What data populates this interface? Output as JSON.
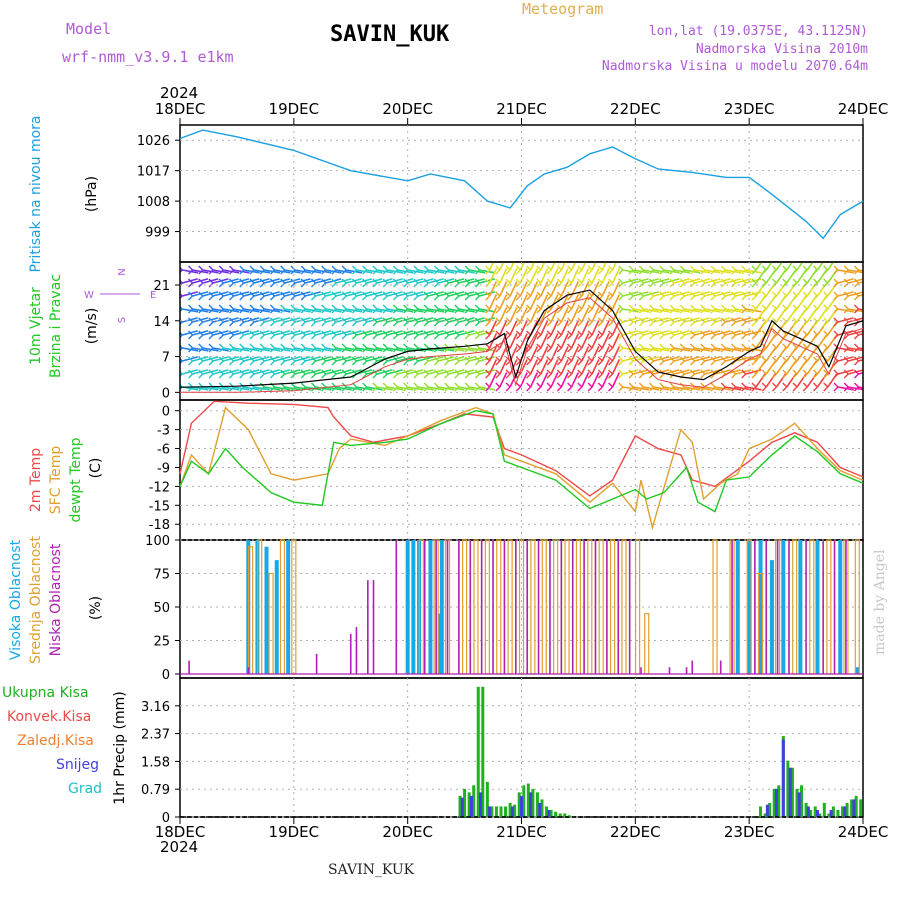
{
  "header": {
    "model_label": "Model",
    "model_name": "wrf-nmm_v3.9.1 e1km",
    "station": "SAVIN_KUK",
    "meteogram_label": "Meteogram",
    "info_lonlat": "lon,lat (19.0375E, 43.1125N)",
    "info_elev": "Nadmorska Visina 2010m",
    "info_elev_model": "Nadmorska Visina u modelu 2070.64m"
  },
  "footer": "SAVIN_KUK",
  "watermark": "made by Angel",
  "colors": {
    "pressure": "#1aa0e0",
    "temp2m": "#f04848",
    "sfc": "#e0a030",
    "dewpt": "#20c820",
    "high_cloud": "#18a8e8",
    "mid_cloud": "#e0a030",
    "low_cloud": "#b020b0",
    "total_precip": "#20b020",
    "conv_precip": "#f04848",
    "frz_precip": "#f08030",
    "snow": "#4040e0",
    "graupel": "#20c0c0",
    "grid": "#b0b0b0"
  },
  "chart_data": [
    {
      "type": "line",
      "panel": "pressure",
      "year": "2024",
      "x_ticks": [
        "18DEC",
        "19DEC",
        "20DEC",
        "21DEC",
        "22DEC",
        "23DEC",
        "24DEC"
      ],
      "ylabel": [
        "Pritisak na nivou mora",
        "(hPa)"
      ],
      "yticks": [
        999,
        1008,
        1017,
        1026
      ],
      "ylim": [
        990,
        1030.5
      ],
      "x": [
        0,
        0.2,
        0.5,
        1,
        1.5,
        2,
        2.2,
        2.5,
        2.7,
        2.9,
        3.05,
        3.2,
        3.4,
        3.6,
        3.8,
        4,
        4.2,
        4.5,
        4.8,
        5,
        5.2,
        5.5,
        5.65,
        5.8,
        6
      ],
      "y": [
        1026.5,
        1029,
        1027,
        1023,
        1017,
        1014,
        1016,
        1014,
        1008,
        1006,
        1012.5,
        1016,
        1018,
        1022,
        1024,
        1020.5,
        1017.5,
        1016.5,
        1015,
        1015,
        1010,
        1002,
        997,
        1004,
        1008
      ],
      "grid": true
    },
    {
      "type": "line",
      "panel": "wind",
      "ylabel": [
        "10m Vjetar",
        "Brzina i Pravac",
        "(m/s)"
      ],
      "compass": {
        "n": "N",
        "s": "S",
        "e": "E",
        "w": "W"
      },
      "yticks": [
        0,
        7,
        14,
        21
      ],
      "ylim": [
        -1.5,
        25.5
      ],
      "x": [
        0,
        0.5,
        1,
        1.5,
        1.8,
        2,
        2.2,
        2.5,
        2.7,
        2.85,
        2.95,
        3.05,
        3.2,
        3.4,
        3.6,
        3.8,
        4,
        4.2,
        4.4,
        4.6,
        4.8,
        5,
        5.1,
        5.2,
        5.3,
        5.4,
        5.5,
        5.6,
        5.7,
        5.85,
        6
      ],
      "y": [
        1,
        1.2,
        1.8,
        3,
        6.5,
        8,
        8.5,
        9,
        9.5,
        11.5,
        3,
        10,
        16,
        19,
        20,
        16,
        8,
        4,
        3,
        2.5,
        5,
        8,
        9,
        14,
        12,
        11,
        10,
        9,
        5,
        13,
        14
      ],
      "grid": true
    },
    {
      "type": "line",
      "panel": "temperature",
      "ylabel": [
        "2m Temp",
        "SFC Temp",
        "dewpt Temp",
        "(C)"
      ],
      "yticks": [
        0,
        -3,
        -6,
        -9,
        -12,
        -15,
        -18
      ],
      "ylim": [
        -20.5,
        1.7
      ],
      "series": [
        {
          "name": "2m Temp",
          "x": [
            0,
            0.1,
            0.3,
            0.6,
            1,
            1.3,
            1.35,
            1.5,
            1.7,
            2,
            2.3,
            2.5,
            2.75,
            2.85,
            3,
            3.3,
            3.6,
            3.8,
            4,
            4.2,
            4.4,
            4.5,
            4.7,
            5,
            5.2,
            5.4,
            5.6,
            5.8,
            6
          ],
          "y": [
            -10,
            -2,
            1.5,
            1.2,
            1,
            0.5,
            -1,
            -4,
            -5,
            -4,
            -2,
            -0.5,
            -1,
            -6,
            -7,
            -9.5,
            -13.5,
            -11,
            -4,
            -6,
            -7,
            -11,
            -12,
            -8,
            -5,
            -3.5,
            -5,
            -9,
            -10.5
          ]
        },
        {
          "name": "SFC Temp",
          "x": [
            0,
            0.1,
            0.25,
            0.4,
            0.6,
            0.8,
            1,
            1.3,
            1.4,
            1.5,
            1.8,
            2,
            2.3,
            2.6,
            2.75,
            2.85,
            3,
            3.3,
            3.6,
            3.8,
            4,
            4.05,
            4.15,
            4.4,
            4.5,
            4.6,
            4.75,
            4.9,
            5,
            5.2,
            5.4,
            5.6,
            5.8,
            6
          ],
          "y": [
            -12,
            -7,
            -10,
            0.5,
            -3,
            -10,
            -11,
            -10,
            -6,
            -4.5,
            -5.5,
            -4,
            -1.5,
            0.5,
            -0.5,
            -7,
            -8,
            -10,
            -14.5,
            -11.5,
            -16,
            -11,
            -18.5,
            -3,
            -5,
            -14,
            -11.5,
            -10,
            -6,
            -4.5,
            -2,
            -6,
            -9.5,
            -11
          ]
        },
        {
          "name": "dewpt Temp",
          "x": [
            0,
            0.1,
            0.25,
            0.4,
            0.55,
            0.8,
            1,
            1.25,
            1.35,
            1.5,
            1.8,
            2,
            2.3,
            2.6,
            2.75,
            2.85,
            3,
            3.3,
            3.6,
            3.8,
            4,
            4.1,
            4.25,
            4.45,
            4.55,
            4.7,
            4.8,
            5,
            5.2,
            5.4,
            5.6,
            5.8,
            6
          ],
          "y": [
            -12,
            -8,
            -10,
            -6,
            -9,
            -13,
            -14.5,
            -15,
            -5,
            -5.5,
            -5,
            -4.5,
            -2,
            0,
            -0.5,
            -8,
            -9,
            -11,
            -15.5,
            -14,
            -12.5,
            -14,
            -13,
            -9,
            -14.5,
            -16,
            -11,
            -10.5,
            -7,
            -4,
            -6.5,
            -10,
            -11.5
          ]
        }
      ],
      "grid": true
    },
    {
      "type": "bar",
      "panel": "clouds",
      "ylabel": [
        "Visoka Oblacnost",
        "Srednja Oblacnost",
        "Niska Oblacnost",
        "(%)"
      ],
      "yticks": [
        0,
        25,
        50,
        75,
        100
      ],
      "ylim": [
        -3,
        100
      ],
      "series": [
        {
          "name": "Visoka Oblacnost",
          "x": [
            0.6,
            0.68,
            0.76,
            0.85,
            0.95,
            1.55,
            1.7,
            1.85,
            2,
            2.05,
            2.1,
            2.2,
            2.28,
            2.3,
            3.3,
            3.45,
            3.6,
            3.75,
            3.9,
            4.9,
            5,
            5.1,
            5.2,
            5.3,
            5.45,
            5.6,
            5.8,
            5.95
          ],
          "y": [
            100,
            100,
            95,
            85,
            100,
            0,
            0,
            0,
            100,
            100,
            100,
            100,
            45,
            100,
            0,
            0,
            0,
            0,
            0,
            100,
            100,
            100,
            85,
            100,
            100,
            100,
            100,
            5
          ]
        },
        {
          "name": "Srednja Oblacnost",
          "x": [
            0.62,
            0.7,
            0.8,
            0.9,
            1,
            1.7,
            1.85,
            2,
            2.12,
            2.25,
            2.35,
            2.5,
            2.6,
            2.7,
            2.8,
            2.9,
            3,
            3.1,
            3.2,
            3.3,
            3.4,
            3.5,
            3.6,
            3.7,
            3.8,
            3.9,
            4.02,
            4.1,
            4.7,
            4.85,
            5,
            5.1,
            5.25,
            5.4,
            5.55,
            5.7,
            5.85,
            5.95
          ],
          "y": [
            95,
            100,
            75,
            100,
            100,
            0,
            0,
            0,
            100,
            100,
            100,
            100,
            100,
            100,
            100,
            100,
            100,
            100,
            100,
            100,
            100,
            100,
            100,
            100,
            100,
            100,
            100,
            45,
            100,
            100,
            100,
            75,
            100,
            100,
            100,
            100,
            100,
            100
          ]
        },
        {
          "name": "Niska Oblacnost",
          "x": [
            0.08,
            0.6,
            1.2,
            1.5,
            1.55,
            1.65,
            1.7,
            1.9,
            2.15,
            2.25,
            2.35,
            2.45,
            2.55,
            2.65,
            2.75,
            2.85,
            2.95,
            3.05,
            3.15,
            3.25,
            3.35,
            3.45,
            3.55,
            3.65,
            3.75,
            3.85,
            3.95,
            4.05,
            4.3,
            4.45,
            4.5,
            4.75,
            4.85,
            5.05,
            5.15,
            5.25,
            5.35,
            5.5,
            5.65,
            5.75,
            5.85
          ],
          "y": [
            10,
            5,
            15,
            30,
            35,
            70,
            70,
            100,
            100,
            100,
            100,
            100,
            100,
            100,
            100,
            100,
            100,
            100,
            100,
            100,
            100,
            100,
            100,
            100,
            100,
            100,
            100,
            5,
            5,
            5,
            10,
            10,
            100,
            100,
            100,
            100,
            100,
            100,
            100,
            100,
            100
          ]
        }
      ],
      "grid": true
    },
    {
      "type": "bar",
      "panel": "precip",
      "ylabel": [
        "1hr Precip (mm)"
      ],
      "legend": [
        "Ukupna Kisa",
        "Konvek.Kisa",
        "Zaledj.Kisa",
        "Snijeg",
        "Grad"
      ],
      "yticks": [
        0,
        0.79,
        1.58,
        2.37,
        3.16
      ],
      "ylim": [
        0,
        3.95
      ],
      "series": [
        {
          "name": "Ukupna Kisa",
          "x": [
            2.46,
            2.5,
            2.54,
            2.58,
            2.62,
            2.66,
            2.7,
            2.74,
            2.78,
            2.82,
            2.86,
            2.9,
            2.94,
            2.98,
            3.02,
            3.06,
            3.1,
            3.14,
            3.18,
            3.22,
            3.26,
            3.3,
            3.34,
            3.38,
            3.42,
            5.1,
            5.14,
            5.18,
            5.22,
            5.26,
            5.3,
            5.34,
            5.38,
            5.42,
            5.46,
            5.5,
            5.54,
            5.58,
            5.62,
            5.66,
            5.7,
            5.74,
            5.78,
            5.82,
            5.86,
            5.9,
            5.94,
            5.98
          ],
          "y": [
            0.6,
            0.8,
            0.7,
            0.9,
            3.7,
            3.7,
            1.0,
            0.3,
            0.3,
            0.3,
            0.3,
            0.4,
            0.35,
            0.7,
            0.9,
            0.95,
            0.8,
            0.7,
            0.5,
            0.3,
            0.2,
            0.15,
            0.1,
            0.1,
            0.05,
            0.3,
            0.1,
            0.4,
            0.8,
            0.9,
            2.3,
            1.6,
            1.4,
            0.8,
            0.9,
            0.4,
            0.2,
            0.3,
            0.1,
            0.4,
            0.1,
            0.3,
            0.2,
            0.3,
            0.4,
            0.5,
            0.6,
            0.5
          ]
        },
        {
          "name": "Snijeg",
          "x": [
            2.48,
            2.56,
            2.64,
            2.72,
            2.92,
            3.0,
            3.08,
            3.16,
            3.24,
            5.16,
            5.24,
            5.3,
            5.36,
            5.44,
            5.52,
            5.6,
            5.72,
            5.84,
            5.92
          ],
          "y": [
            0.55,
            0.6,
            0.7,
            0.3,
            0.3,
            0.6,
            0.7,
            0.4,
            0.2,
            0.35,
            0.8,
            2.2,
            1.4,
            0.7,
            0.3,
            0.2,
            0.2,
            0.3,
            0.5
          ]
        }
      ],
      "grid": true
    }
  ]
}
